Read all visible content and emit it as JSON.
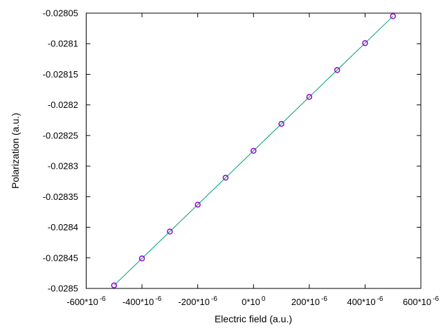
{
  "page": {
    "background": "#ffffff"
  },
  "chart_data": {
    "type": "line",
    "title": "",
    "xlabel": "Electric field (a.u.)",
    "ylabel": "Polarization (a.u.)",
    "x": [
      -0.0005,
      -0.0004,
      -0.0003,
      -0.0002,
      -0.0001,
      0.0,
      0.0001,
      0.0002,
      0.0003,
      0.0004,
      0.0005
    ],
    "y": [
      -0.028495,
      -0.028451,
      -0.028407,
      -0.028363,
      -0.028319,
      -0.028275,
      -0.028231,
      -0.028187,
      -0.028143,
      -0.028099,
      -0.028055
    ],
    "xlim": [
      -0.0006,
      0.0006
    ],
    "ylim": [
      -0.0285,
      -0.02805
    ],
    "x_ticks": [
      -0.0006,
      -0.0004,
      -0.0002,
      0.0,
      0.0002,
      0.0004,
      0.0006
    ],
    "x_tick_labels": [
      "-600*10^-6",
      "-400*10^-6",
      "-200*10^-6",
      "0*10^0",
      "200*10^-6",
      "400*10^-6",
      "600*10^-6"
    ],
    "y_ticks": [
      -0.0285,
      -0.02845,
      -0.0284,
      -0.02835,
      -0.0283,
      -0.02825,
      -0.0282,
      -0.02815,
      -0.0281,
      -0.02805
    ],
    "y_tick_labels": [
      "-0.0285",
      "-0.02845",
      "-0.0284",
      "-0.02835",
      "-0.0283",
      "-0.02825",
      "-0.0282",
      "-0.02815",
      "-0.0281",
      "-0.02805"
    ],
    "grid": false,
    "legend": "none",
    "marker": "open-circle",
    "tick_style": "inward-mirrored",
    "line_color": "#009e73",
    "point_color": "#9400d3",
    "border_color": "#000000"
  }
}
